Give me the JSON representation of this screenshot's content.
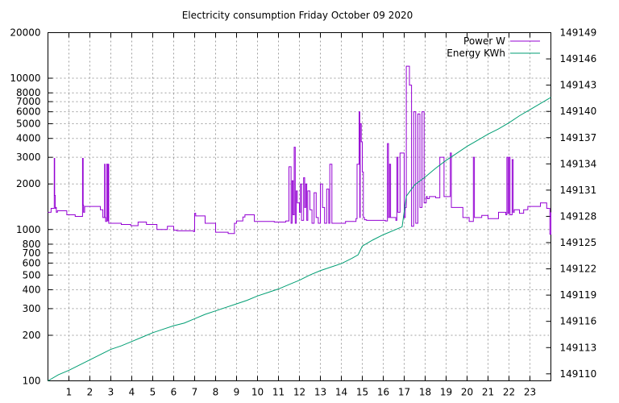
{
  "chart_data": {
    "type": "line",
    "title": "Electricity consumption Friday October 09 2020",
    "legend_position": "top-right",
    "grid": true,
    "x_axis": {
      "range": [
        0,
        24
      ],
      "ticks": [
        1,
        2,
        3,
        4,
        5,
        6,
        7,
        8,
        9,
        10,
        11,
        12,
        13,
        14,
        15,
        16,
        17,
        18,
        19,
        20,
        21,
        22,
        23
      ],
      "tick_labels": [
        "1",
        "2",
        "3",
        "4",
        "5",
        "6",
        "7",
        "8",
        "9",
        "10",
        "11",
        "12",
        "13",
        "14",
        "15",
        "16",
        "17",
        "18",
        "19",
        "20",
        "21",
        "22",
        "23"
      ]
    },
    "y_left": {
      "scale": "log",
      "range": [
        100,
        20000
      ],
      "ticks": [
        100,
        200,
        300,
        400,
        500,
        600,
        700,
        800,
        1000,
        2000,
        3000,
        4000,
        5000,
        6000,
        7000,
        8000,
        10000,
        20000
      ],
      "tick_labels": [
        "100",
        "200",
        "300",
        "400",
        "500",
        "600",
        "700",
        "800",
        "1000",
        "2000",
        "3000",
        "4000",
        "5000",
        "6000",
        "7000",
        "8000",
        "10000",
        "20000"
      ]
    },
    "y_right": {
      "scale": "linear",
      "range": [
        109.2,
        149.0
      ],
      "ticks": [
        110,
        113,
        116,
        119,
        122,
        125,
        128,
        131,
        134,
        137,
        140,
        143,
        146,
        149
      ],
      "tick_labels": [
        "149110",
        "149113",
        "149116",
        "149119",
        "149122",
        "149125",
        "149128",
        "149131",
        "149134",
        "149137",
        "149140",
        "149143",
        "149146",
        "149149"
      ]
    },
    "series": [
      {
        "name": "Power W",
        "axis": "left",
        "color": "#9400d3",
        "style": "steps",
        "x": [
          0,
          0.15,
          0.3,
          0.32,
          0.35,
          0.37,
          0.4,
          0.45,
          0.9,
          1.3,
          1.65,
          1.68,
          1.7,
          1.75,
          2.5,
          2.62,
          2.7,
          2.72,
          2.75,
          2.8,
          2.85,
          2.88,
          2.9,
          2.93,
          3.5,
          3.95,
          4.3,
          4.7,
          5.2,
          5.7,
          6.0,
          6.15,
          6.95,
          7.0,
          7.05,
          7.5,
          8.0,
          8.6,
          8.9,
          9.0,
          9.3,
          9.4,
          9.85,
          10.8,
          11.35,
          11.5,
          11.6,
          11.65,
          11.7,
          11.75,
          11.8,
          11.85,
          11.9,
          12.0,
          12.05,
          12.1,
          12.2,
          12.25,
          12.3,
          12.35,
          12.4,
          12.5,
          12.6,
          12.7,
          12.8,
          12.9,
          13.0,
          13.1,
          13.2,
          13.3,
          13.4,
          13.45,
          13.55,
          14.2,
          14.7,
          14.75,
          14.85,
          14.88,
          14.9,
          14.95,
          15.0,
          15.05,
          15.1,
          15.2,
          15.35,
          16.1,
          16.2,
          16.25,
          16.3,
          16.35,
          16.6,
          16.65,
          16.7,
          16.8,
          17.0,
          17.05,
          17.1,
          17.25,
          17.35,
          17.45,
          17.55,
          17.65,
          17.75,
          17.85,
          17.95,
          18.05,
          18.1,
          18.2,
          18.5,
          18.7,
          18.9,
          19.2,
          19.25,
          19.8,
          20.1,
          20.3,
          20.35,
          20.7,
          21.0,
          21.5,
          21.85,
          21.9,
          21.95,
          22.0,
          22.05,
          22.15,
          22.2,
          22.25,
          22.5,
          22.7,
          22.9,
          23.5,
          23.8,
          23.95,
          24.0
        ],
        "y": [
          1300,
          1380,
          2950,
          1680,
          1380,
          1400,
          1300,
          1330,
          1250,
          1220,
          2950,
          1450,
          1300,
          1420,
          1350,
          1200,
          2700,
          1200,
          1130,
          2700,
          1140,
          2700,
          1100,
          1100,
          1080,
          1060,
          1120,
          1080,
          1000,
          1050,
          990,
          980,
          970,
          1280,
          1230,
          1100,
          960,
          940,
          1100,
          1140,
          1210,
          1250,
          1130,
          1120,
          1140,
          2600,
          1100,
          2100,
          1250,
          3500,
          1100,
          1800,
          1500,
          1300,
          2000,
          1150,
          2200,
          1400,
          2000,
          1150,
          1800,
          1350,
          1100,
          1750,
          1200,
          1100,
          2000,
          1400,
          1100,
          1850,
          1100,
          2700,
          1100,
          1130,
          1180,
          2700,
          6000,
          1200,
          5000,
          3800,
          2400,
          1200,
          1160,
          1150,
          1150,
          1140,
          3700,
          1200,
          2700,
          1200,
          1150,
          3000,
          1300,
          3200,
          1200,
          1400,
          12000,
          9000,
          1050,
          6000,
          1100,
          5800,
          1400,
          6000,
          1500,
          1650,
          1600,
          1650,
          1620,
          3000,
          1650,
          3200,
          1400,
          1200,
          1130,
          3000,
          1200,
          1240,
          1180,
          1300,
          1250,
          3000,
          1280,
          3000,
          1250,
          2900,
          1300,
          1350,
          1280,
          1350,
          1420,
          1500,
          1380,
          930,
          1300
        ]
      },
      {
        "name": "Energy KWh",
        "axis": "right",
        "color": "#009e73",
        "style": "line",
        "x": [
          0,
          0.5,
          1,
          1.5,
          2,
          2.5,
          3,
          3.5,
          4,
          4.5,
          5,
          5.5,
          6,
          6.5,
          7,
          7.5,
          8,
          8.5,
          9,
          9.5,
          10,
          10.5,
          11,
          11.5,
          12,
          12.5,
          13,
          13.5,
          14,
          14.5,
          14.8,
          15.0,
          15.5,
          16,
          16.5,
          16.9,
          17.1,
          17.5,
          18,
          18.5,
          19,
          19.5,
          20,
          20.5,
          21,
          21.5,
          22,
          22.5,
          23,
          23.5,
          24
        ],
        "y": [
          109.2,
          109.9,
          110.4,
          111.0,
          111.6,
          112.2,
          112.8,
          113.2,
          113.7,
          114.2,
          114.7,
          115.1,
          115.5,
          115.8,
          116.3,
          116.8,
          117.2,
          117.6,
          118.0,
          118.4,
          118.9,
          119.3,
          119.7,
          120.2,
          120.7,
          121.3,
          121.8,
          122.2,
          122.6,
          123.2,
          123.6,
          124.6,
          125.3,
          125.9,
          126.4,
          126.8,
          130.3,
          131.6,
          132.5,
          133.5,
          134.4,
          135.2,
          136.0,
          136.7,
          137.4,
          138.0,
          138.7,
          139.5,
          140.2,
          140.9,
          141.6
        ]
      }
    ]
  }
}
